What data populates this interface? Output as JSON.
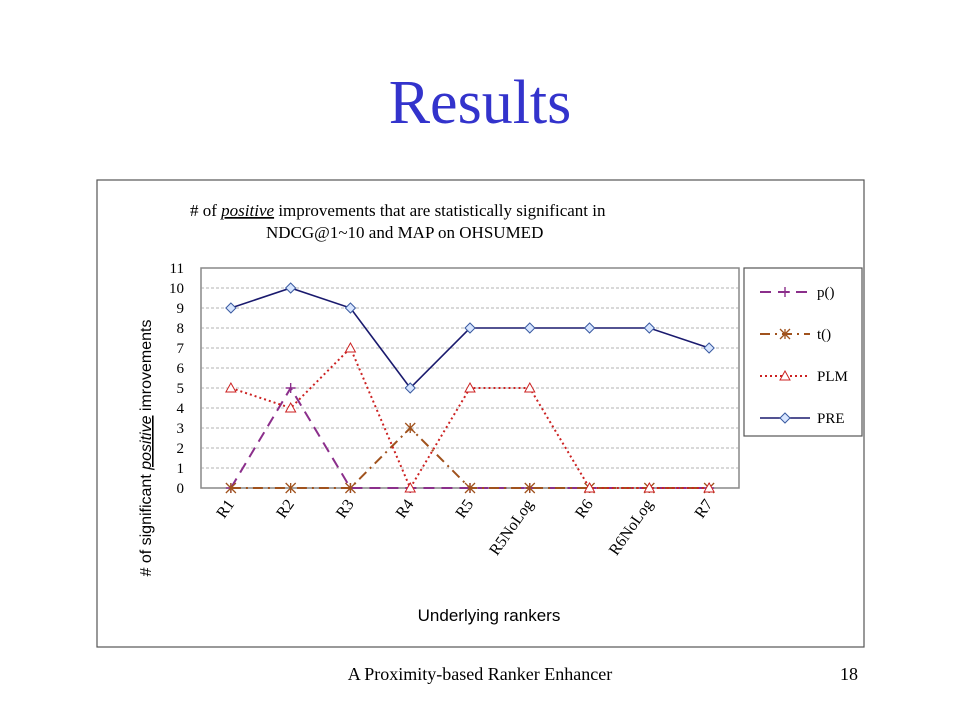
{
  "slide": {
    "title": "Results",
    "footer": "A Proximity-based Ranker Enhancer",
    "page_number": "18"
  },
  "chart_data": {
    "type": "line",
    "title_line1_pre": "# of ",
    "title_line1_em": "positive",
    "title_line1_post": " improvements that are statistically  significant in",
    "title_line2": "NDCG@1~10 and MAP   on OHSUMED",
    "ylabel_pre": "# of significant ",
    "ylabel_em": "positive",
    "ylabel_post": " imrovements",
    "xlabel": "Underlying rankers",
    "categories": [
      "R1",
      "R2",
      "R3",
      "R4",
      "R5",
      "R5NoLog",
      "R6",
      "R6NoLog",
      "R7"
    ],
    "ylim": [
      0,
      11
    ],
    "yticks": [
      "0",
      "1",
      "2",
      "3",
      "4",
      "5",
      "6",
      "7",
      "8",
      "9",
      "10",
      "11"
    ],
    "grid": "horizontal dashed",
    "legend_position": "right",
    "series": [
      {
        "name": "p()",
        "values": [
          0,
          5,
          0,
          0,
          0,
          0,
          0,
          0,
          0
        ],
        "color": "#8b2f8b",
        "dash": "long-dash",
        "marker": "plus"
      },
      {
        "name": "t()",
        "values": [
          0,
          0,
          0,
          3,
          0,
          0,
          0,
          0,
          0
        ],
        "color": "#a0521d",
        "dash": "dash-dot",
        "marker": "asterisk"
      },
      {
        "name": "PLM",
        "values": [
          5,
          4,
          7,
          0,
          5,
          5,
          0,
          0,
          0
        ],
        "color": "#cc2222",
        "dash": "dotted",
        "marker": "triangle"
      },
      {
        "name": "PRE",
        "values": [
          9,
          10,
          9,
          5,
          8,
          8,
          8,
          8,
          7
        ],
        "color": "#1a1a6e",
        "dash": "solid",
        "marker": "diamond"
      }
    ]
  }
}
